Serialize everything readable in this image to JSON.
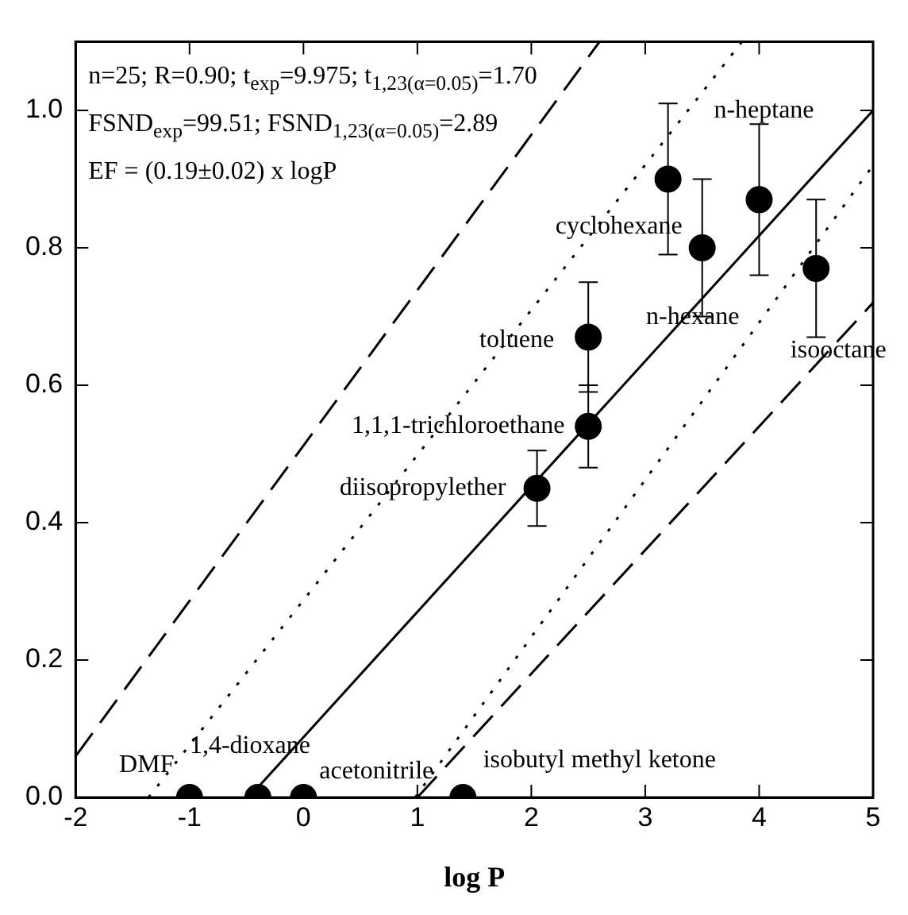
{
  "chart_data": {
    "type": "scatter",
    "xlabel": "log P",
    "xlim": [
      -2,
      5
    ],
    "xticks": [
      -2,
      -1,
      0,
      1,
      2,
      3,
      4,
      5
    ],
    "ylim": [
      0,
      1.1
    ],
    "yticks": [
      {
        "value": 0,
        "label": "0.0"
      },
      0.2,
      0.4,
      0.6,
      0.8,
      {
        "value": 1,
        "label": "1.0"
      }
    ],
    "grid": false,
    "legend": false,
    "marker": "circle",
    "series": [
      {
        "color": "#000000",
        "x": [
          -1,
          -0.4,
          0,
          1.4,
          2.05,
          2.5,
          2.5,
          3.2,
          3.5,
          4.0,
          4.5
        ],
        "values": [
          0,
          0,
          0,
          0,
          0.45,
          0.54,
          0.67,
          0.9,
          0.8,
          0.87,
          0.77
        ],
        "errors": [
          null,
          null,
          null,
          null,
          0.055,
          0.06,
          0.08,
          0.11,
          0.1,
          0.11,
          0.1
        ]
      },
      {
        "type": "line",
        "color": "#000000",
        "marker": "none",
        "line_style": "solid",
        "x": [
          -0.48,
          5
        ],
        "values": [
          0,
          1.0
        ]
      },
      {
        "type": "line",
        "color": "#000000",
        "marker": "none",
        "line_style": "dotted",
        "x": [
          -1.36,
          3.85
        ],
        "values": [
          0,
          1.1
        ]
      },
      {
        "type": "line",
        "color": "#000000",
        "marker": "none",
        "line_style": "dotted",
        "x": [
          0.98,
          5
        ],
        "values": [
          0,
          0.92
        ]
      },
      {
        "type": "line",
        "color": "#000000",
        "marker": "none",
        "line_style": "dashed",
        "x": [
          -2,
          2.6
        ],
        "values": [
          0.06,
          1.1
        ]
      },
      {
        "type": "line",
        "color": "#000000",
        "marker": "none",
        "line_style": "dashed",
        "x": [
          1.0,
          5
        ],
        "values": [
          0,
          0.72
        ]
      }
    ],
    "annotations": [
      "n=25; R=0.90; t$_{exp}$=9.975; t$_{1,23(α=0.05)}$=1.70",
      "FSND$_{exp}$=99.51; FSND$_{1,23(α=0.05)}$=2.89",
      "EF = (0.19±0.02) x logP",
      {
        "text": "DMF",
        "x": -1,
        "y": 0
      },
      {
        "text": "1,4-dioxane",
        "x": -0.4,
        "y": 0
      },
      {
        "text": "acetonitrile",
        "x": 0,
        "y": 0
      },
      {
        "text": "isobutyl methyl ketone",
        "x": 1.4,
        "y": 0
      },
      {
        "text": "diisopropylether",
        "x": 2.05,
        "y": 0.45
      },
      {
        "text": "1,1,1-trichloroethane",
        "x": 2.5,
        "y": 0.54
      },
      {
        "text": "toluene",
        "x": 2.5,
        "y": 0.67
      },
      {
        "text": "cyclohexane",
        "x": 3.2,
        "y": 0.9
      },
      {
        "text": "n-heptane",
        "x": 4.0,
        "y": 0.87
      },
      {
        "text": "n-hexane",
        "x": 3.5,
        "y": 0.8
      },
      {
        "text": "isooctane",
        "x": 4.5,
        "y": 0.77
      }
    ]
  }
}
